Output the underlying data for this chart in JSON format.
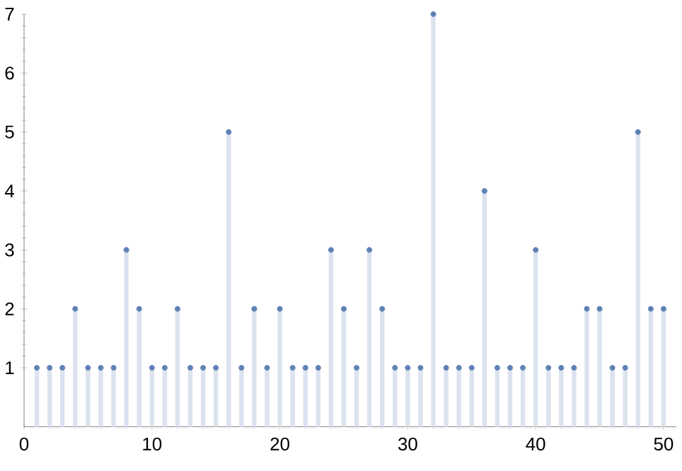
{
  "chart_data": {
    "type": "lollipop",
    "x": [
      1,
      2,
      3,
      4,
      5,
      6,
      7,
      8,
      9,
      10,
      11,
      12,
      13,
      14,
      15,
      16,
      17,
      18,
      19,
      20,
      21,
      22,
      23,
      24,
      25,
      26,
      27,
      28,
      29,
      30,
      31,
      32,
      33,
      34,
      35,
      36,
      37,
      38,
      39,
      40,
      41,
      42,
      43,
      44,
      45,
      46,
      47,
      48,
      49,
      50
    ],
    "values": [
      1,
      1,
      1,
      2,
      1,
      1,
      1,
      3,
      2,
      1,
      1,
      2,
      1,
      1,
      1,
      5,
      1,
      2,
      1,
      2,
      1,
      1,
      1,
      3,
      2,
      1,
      3,
      2,
      1,
      1,
      1,
      7,
      1,
      1,
      1,
      4,
      1,
      1,
      1,
      3,
      1,
      1,
      1,
      2,
      2,
      1,
      1,
      5,
      2,
      2
    ],
    "color": "#5e81b5",
    "marker": "circle",
    "xlim": [
      0,
      51
    ],
    "ylim": [
      0,
      7
    ],
    "xticks": [
      0,
      10,
      20,
      30,
      40,
      50
    ],
    "yticks": [
      1,
      2,
      3,
      4,
      5,
      6,
      7
    ]
  }
}
